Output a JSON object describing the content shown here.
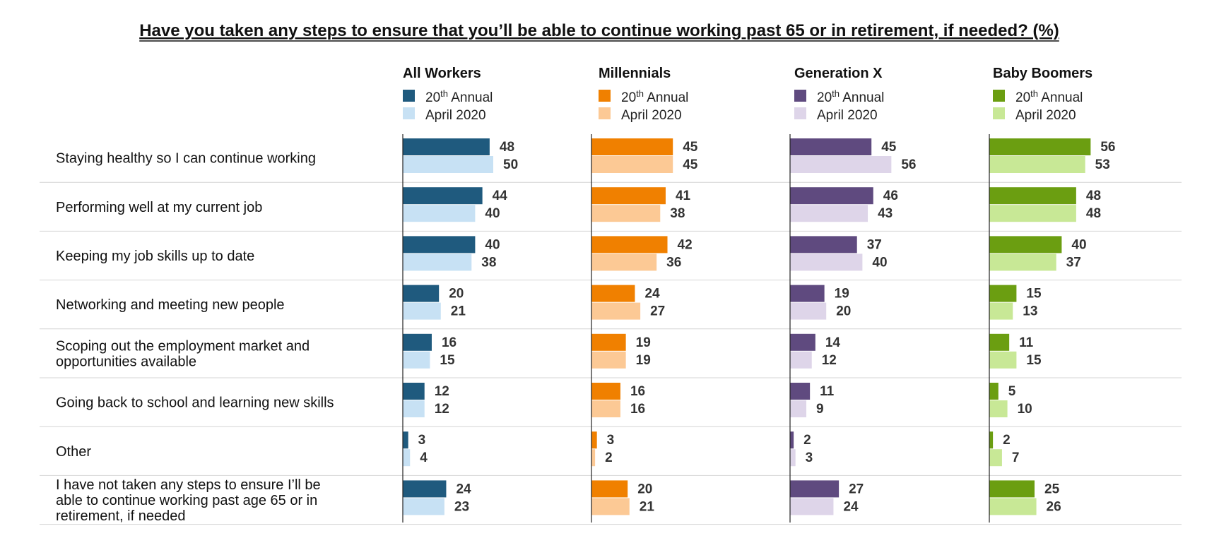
{
  "chart_data": {
    "type": "bar",
    "orientation": "horizontal",
    "title": "Have you taken any steps to ensure that you’ll be able to continue working past 65 or in retirement, if needed? (%)",
    "categories": [
      "Staying healthy so I can continue working",
      "Performing well at my current job",
      "Keeping my job skills up to date",
      "Networking and meeting new people",
      "Scoping out the employment market and opportunities available",
      "Going back to school and learning new skills",
      "Other",
      "I have not taken any steps to ensure I’ll be able to continue working past age 65 or in retirement, if needed"
    ],
    "category_lines": [
      [
        "Staying healthy so I can continue working"
      ],
      [
        "Performing well at my current job"
      ],
      [
        "Keeping my job skills up to date"
      ],
      [
        "Networking and meeting new people"
      ],
      [
        "Scoping out the employment market and",
        "opportunities available"
      ],
      [
        "Going back to school and learning new skills"
      ],
      [
        "Other"
      ],
      [
        "I have not taken any steps to ensure I’ll be",
        "able to continue working past age 65 or in",
        "retirement, if needed"
      ]
    ],
    "legend_labels": {
      "annual_prefix": "20",
      "annual_superscript": "th",
      "annual_suffix": " Annual",
      "april": "April 2020"
    },
    "groups": [
      {
        "name": "All Workers",
        "colors": {
          "annual": "#1f5a7e",
          "april": "#c7e1f4"
        },
        "series": [
          {
            "name": "20th Annual",
            "values": [
              48,
              44,
              40,
              20,
              16,
              12,
              3,
              24
            ]
          },
          {
            "name": "April 2020",
            "values": [
              50,
              40,
              38,
              21,
              15,
              12,
              4,
              23
            ]
          }
        ]
      },
      {
        "name": "Millennials",
        "colors": {
          "annual": "#f08000",
          "april": "#fcc995"
        },
        "series": [
          {
            "name": "20th Annual",
            "values": [
              45,
              41,
              42,
              24,
              19,
              16,
              3,
              20
            ]
          },
          {
            "name": "April 2020",
            "values": [
              45,
              38,
              36,
              27,
              19,
              16,
              2,
              21
            ]
          }
        ]
      },
      {
        "name": "Generation X",
        "colors": {
          "annual": "#5f4a7f",
          "april": "#ded5e9"
        },
        "series": [
          {
            "name": "20th Annual",
            "values": [
              45,
              46,
              37,
              19,
              14,
              11,
              2,
              27
            ]
          },
          {
            "name": "April 2020",
            "values": [
              56,
              43,
              40,
              20,
              12,
              9,
              3,
              24
            ]
          }
        ]
      },
      {
        "name": "Baby Boomers",
        "colors": {
          "annual": "#6b9e11",
          "april": "#c8e896"
        },
        "series": [
          {
            "name": "20th Annual",
            "values": [
              56,
              48,
              40,
              15,
              11,
              5,
              2,
              25
            ]
          },
          {
            "name": "April 2020",
            "values": [
              53,
              48,
              37,
              13,
              15,
              10,
              7,
              26
            ]
          }
        ]
      }
    ],
    "xlim": [
      0,
      60
    ],
    "grid": false,
    "legend_position": "under each group title"
  }
}
